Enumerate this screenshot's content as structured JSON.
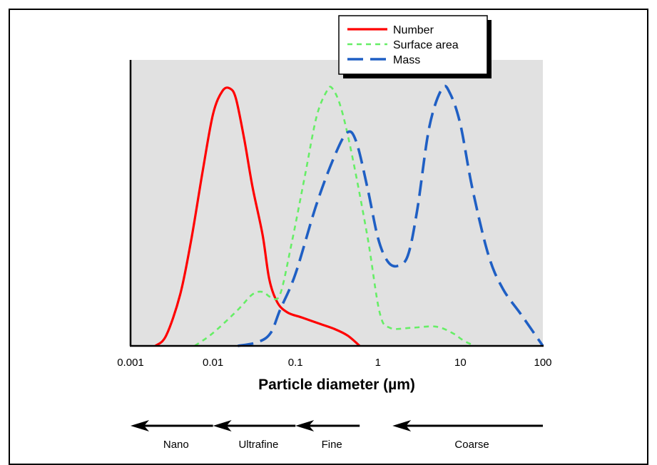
{
  "chart_data": {
    "type": "line",
    "xscale": "log",
    "xlim": [
      0.001,
      100
    ],
    "ylim": [
      0,
      1
    ],
    "grid": false,
    "y_axis_ticks": false,
    "background": "#e1e1e1",
    "xlabel": "Particle diameter (µm)",
    "x_ticks": [
      {
        "value": 0.001,
        "label": "0.001"
      },
      {
        "value": 0.01,
        "label": "0.01"
      },
      {
        "value": 0.1,
        "label": "0.1"
      },
      {
        "value": 1,
        "label": "1"
      },
      {
        "value": 10,
        "label": "10"
      },
      {
        "value": 100,
        "label": "100"
      }
    ],
    "legend": {
      "placement": "top-right"
    },
    "series": [
      {
        "name": "Number",
        "color": "#ff0000",
        "dash": "solid",
        "points": [
          [
            0.002,
            0
          ],
          [
            0.0027,
            0.04
          ],
          [
            0.004,
            0.2
          ],
          [
            0.0055,
            0.42
          ],
          [
            0.0075,
            0.68
          ],
          [
            0.01,
            0.9
          ],
          [
            0.013,
            0.99
          ],
          [
            0.016,
            1.0
          ],
          [
            0.019,
            0.96
          ],
          [
            0.024,
            0.8
          ],
          [
            0.03,
            0.62
          ],
          [
            0.04,
            0.43
          ],
          [
            0.048,
            0.26
          ],
          [
            0.06,
            0.17
          ],
          [
            0.08,
            0.13
          ],
          [
            0.12,
            0.11
          ],
          [
            0.2,
            0.085
          ],
          [
            0.3,
            0.065
          ],
          [
            0.43,
            0.04
          ],
          [
            0.6,
            0
          ]
        ]
      },
      {
        "name": "Surface area",
        "color": "#66ee66",
        "dash": "short",
        "points": [
          [
            0.006,
            0
          ],
          [
            0.01,
            0.05
          ],
          [
            0.02,
            0.14
          ],
          [
            0.03,
            0.2
          ],
          [
            0.04,
            0.21
          ],
          [
            0.05,
            0.19
          ],
          [
            0.065,
            0.2
          ],
          [
            0.09,
            0.4
          ],
          [
            0.13,
            0.66
          ],
          [
            0.18,
            0.89
          ],
          [
            0.24,
            0.99
          ],
          [
            0.28,
            1.0
          ],
          [
            0.36,
            0.92
          ],
          [
            0.5,
            0.72
          ],
          [
            0.75,
            0.42
          ],
          [
            1.05,
            0.13
          ],
          [
            1.4,
            0.07
          ],
          [
            2.5,
            0.07
          ],
          [
            5.0,
            0.075
          ],
          [
            8.0,
            0.05
          ],
          [
            11.0,
            0.02
          ],
          [
            15.0,
            0
          ]
        ]
      },
      {
        "name": "Mass",
        "color": "#1f5fc4",
        "dash": "long",
        "points": [
          [
            0.02,
            0
          ],
          [
            0.035,
            0.015
          ],
          [
            0.05,
            0.05
          ],
          [
            0.065,
            0.14
          ],
          [
            0.1,
            0.28
          ],
          [
            0.18,
            0.55
          ],
          [
            0.3,
            0.74
          ],
          [
            0.43,
            0.83
          ],
          [
            0.55,
            0.79
          ],
          [
            0.75,
            0.61
          ],
          [
            1.0,
            0.42
          ],
          [
            1.3,
            0.33
          ],
          [
            1.7,
            0.31
          ],
          [
            2.3,
            0.35
          ],
          [
            3.0,
            0.53
          ],
          [
            4.2,
            0.85
          ],
          [
            6.0,
            1.0
          ],
          [
            7.5,
            0.98
          ],
          [
            10.0,
            0.86
          ],
          [
            14.0,
            0.61
          ],
          [
            22.0,
            0.35
          ],
          [
            33.0,
            0.22
          ],
          [
            55.0,
            0.12
          ],
          [
            100.0,
            0
          ]
        ]
      }
    ],
    "size_ranges": [
      {
        "label": "Nano",
        "from": 0.01,
        "to": 0.001
      },
      {
        "label": "Ultrafine",
        "from": 0.1,
        "to": 0.01
      },
      {
        "label": "Fine",
        "from": 0.6,
        "to": 0.1
      },
      {
        "label": "Coarse",
        "from": 100,
        "to": 1.5
      }
    ]
  }
}
